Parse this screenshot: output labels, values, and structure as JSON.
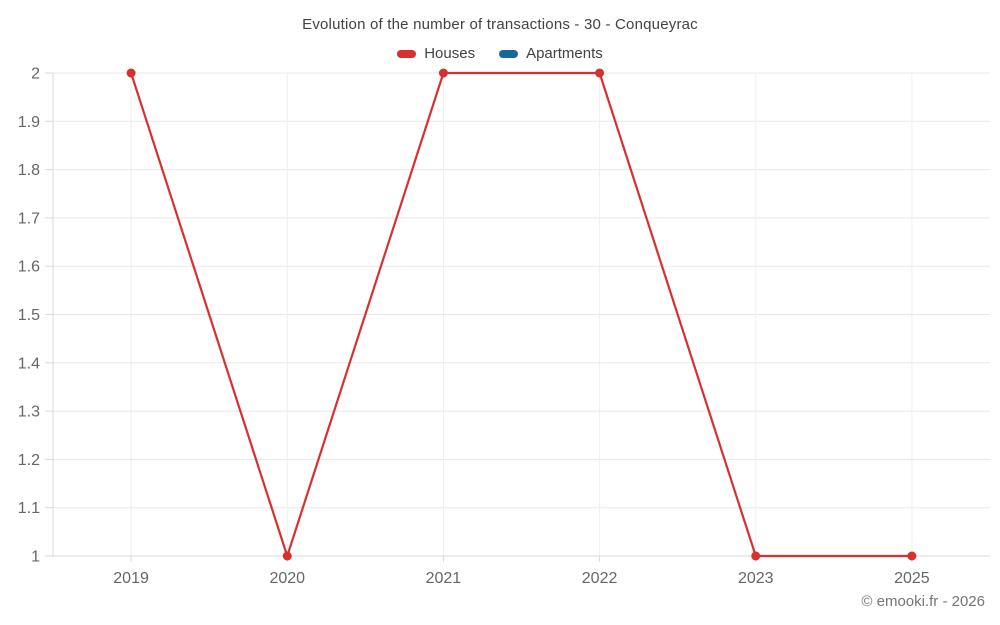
{
  "chart_data": {
    "type": "line",
    "title": "Evolution of the number of transactions - 30 - Conqueyrac",
    "categories": [
      "2019",
      "2020",
      "2021",
      "2022",
      "2023",
      "2025"
    ],
    "series": [
      {
        "name": "Houses",
        "color": "#d7302f",
        "values": [
          2,
          1,
          2,
          2,
          1,
          1
        ]
      },
      {
        "name": "Apartments",
        "color": "#17699c",
        "values": []
      }
    ],
    "ylim": [
      1,
      2
    ],
    "yticks": [
      "2",
      "1.9",
      "1.8",
      "1.7",
      "1.6",
      "1.5",
      "1.4",
      "1.3",
      "1.2",
      "1.1",
      "1"
    ],
    "grid": true,
    "legend_position": "top",
    "colors": {
      "grid_horizontal": "#e8e8e8",
      "grid_vertical": "#efefef",
      "axis": "#d9d9d9",
      "tick_label": "#666666",
      "title": "#424242",
      "legend_text": "#424242",
      "copyright": "#757575"
    }
  },
  "footer": {
    "copyright": "© emooki.fr - 2026"
  }
}
